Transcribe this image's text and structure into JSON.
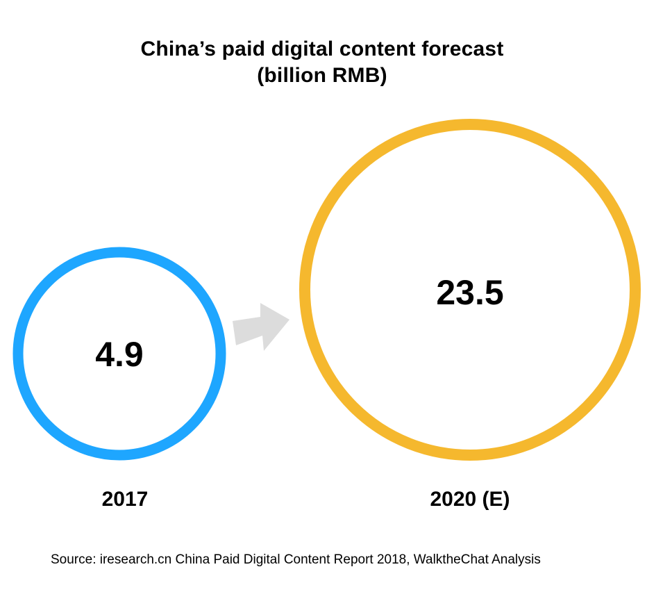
{
  "title_line1": "China’s paid digital content forecast",
  "title_line2": "(billion RMB)",
  "source": "Source: iresearch.cn China Paid Digital Content Report 2018, WalktheChat Analysis",
  "colors": {
    "circle_2017": "#1ea6ff",
    "circle_2020": "#f5b82e",
    "arrow": "#dcdcdc"
  },
  "chart_data": {
    "type": "bubble",
    "title": "China’s paid digital content forecast (billion RMB)",
    "unit": "billion RMB",
    "categories": [
      "2017",
      "2020 (E)"
    ],
    "values": [
      4.9,
      23.5
    ],
    "value_labels": [
      "4.9",
      "23.5"
    ],
    "colors": [
      "#1ea6ff",
      "#f5b82e"
    ],
    "connector": "arrow"
  }
}
